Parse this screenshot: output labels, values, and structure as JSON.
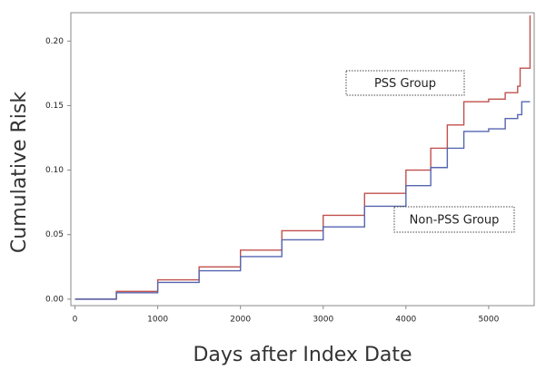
{
  "chart_data": {
    "type": "line",
    "step": true,
    "xlabel": "Days after Index Date",
    "ylabel": "Cumulative Risk",
    "xlim": [
      -50,
      5550
    ],
    "ylim": [
      -0.005,
      0.222
    ],
    "xticks": [
      0,
      1000,
      2000,
      3000,
      4000,
      5000
    ],
    "yticks": [
      {
        "value": 0,
        "label": "0.00"
      },
      {
        "value": 0.05,
        "label": "0.05"
      },
      {
        "value": 0.1,
        "label": "0.10"
      },
      {
        "value": 0.15,
        "label": "0.15"
      },
      {
        "value": 0.2,
        "label": "0.20"
      }
    ],
    "series": [
      {
        "name": "PSS Group",
        "color": "#c0504d",
        "x": [
          0,
          500,
          1000,
          1500,
          2000,
          2500,
          3000,
          3500,
          4000,
          4300,
          4500,
          4700,
          5000,
          5200,
          5350,
          5380,
          5500
        ],
        "values": [
          0,
          0.006,
          0.015,
          0.025,
          0.038,
          0.053,
          0.065,
          0.082,
          0.1,
          0.117,
          0.135,
          0.153,
          0.155,
          0.16,
          0.165,
          0.179,
          0.22
        ]
      },
      {
        "name": "Non-PSS Group",
        "color": "#5566b0",
        "x": [
          0,
          500,
          1000,
          1500,
          2000,
          2500,
          3000,
          3500,
          4000,
          4300,
          4500,
          4700,
          5000,
          5200,
          5350,
          5400,
          5500
        ],
        "values": [
          0,
          0.005,
          0.013,
          0.022,
          0.033,
          0.046,
          0.056,
          0.072,
          0.088,
          0.102,
          0.117,
          0.13,
          0.132,
          0.14,
          0.143,
          0.153,
          0.153
        ]
      }
    ]
  }
}
